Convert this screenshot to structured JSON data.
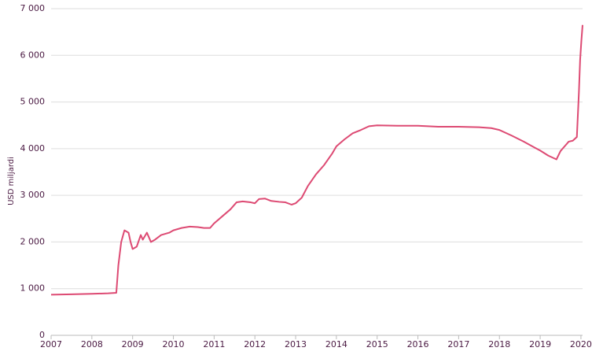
{
  "chart_data": {
    "type": "line",
    "ylabel": "USD miljardi",
    "xlim": [
      2007,
      2020.04
    ],
    "xticks": [
      2007,
      2008,
      2009,
      2010,
      2011,
      2012,
      2013,
      2014,
      2015,
      2016,
      2017,
      2018,
      2019,
      2020
    ],
    "ylim": [
      0,
      7000
    ],
    "yticks": [
      0,
      {
        "value": 1000,
        "label": "1 000"
      },
      {
        "value": 2000,
        "label": "2 000"
      },
      {
        "value": 3000,
        "label": "3 000"
      },
      {
        "value": 4000,
        "label": "4 000"
      },
      {
        "value": 5000,
        "label": "5 000"
      },
      {
        "value": 6000,
        "label": "6 000"
      },
      {
        "value": 7000,
        "label": "7 000"
      }
    ],
    "grid": true,
    "x": [
      2007.0,
      2007.5,
      2008.0,
      2008.4,
      2008.6,
      2008.65,
      2008.72,
      2008.8,
      2008.9,
      2008.95,
      2009.0,
      2009.1,
      2009.2,
      2009.25,
      2009.35,
      2009.45,
      2009.55,
      2009.7,
      2009.9,
      2010.0,
      2010.2,
      2010.4,
      2010.6,
      2010.75,
      2010.9,
      2011.0,
      2011.2,
      2011.4,
      2011.55,
      2011.7,
      2011.9,
      2012.0,
      2012.1,
      2012.25,
      2012.4,
      2012.6,
      2012.75,
      2012.9,
      2013.0,
      2013.15,
      2013.3,
      2013.5,
      2013.7,
      2013.9,
      2014.0,
      2014.2,
      2014.4,
      2014.6,
      2014.8,
      2015.0,
      2015.5,
      2016.0,
      2016.5,
      2017.0,
      2017.5,
      2017.8,
      2018.0,
      2018.3,
      2018.6,
      2018.85,
      2019.0,
      2019.2,
      2019.4,
      2019.5,
      2019.6,
      2019.7,
      2019.8,
      2019.9,
      2019.95,
      2019.98,
      2020.01,
      2020.04
    ],
    "series": [
      {
        "color": "#dd4a73",
        "values": [
          870,
          880,
          890,
          900,
          910,
          1500,
          2000,
          2250,
          2200,
          2000,
          1850,
          1900,
          2150,
          2050,
          2200,
          2000,
          2050,
          2150,
          2200,
          2250,
          2300,
          2330,
          2320,
          2300,
          2300,
          2400,
          2550,
          2700,
          2850,
          2870,
          2850,
          2830,
          2920,
          2930,
          2880,
          2860,
          2850,
          2800,
          2830,
          2950,
          3200,
          3450,
          3650,
          3900,
          4050,
          4200,
          4330,
          4400,
          4480,
          4500,
          4490,
          4490,
          4470,
          4470,
          4460,
          4440,
          4400,
          4280,
          4150,
          4030,
          3960,
          3850,
          3770,
          3950,
          4050,
          4150,
          4170,
          4250,
          5200,
          5900,
          6300,
          6650
        ]
      }
    ]
  }
}
